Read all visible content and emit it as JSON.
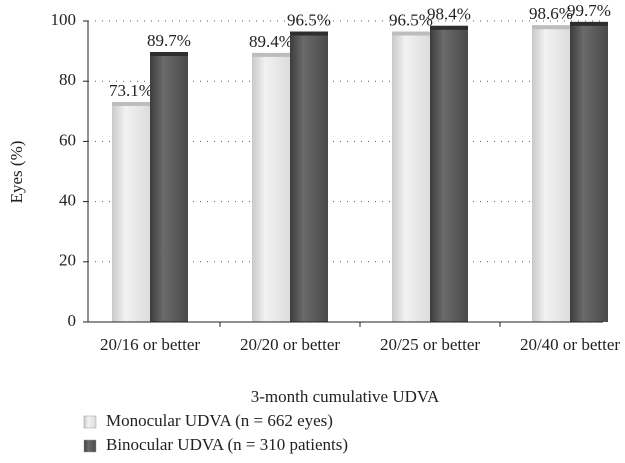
{
  "chart_data": {
    "type": "bar",
    "y_label": "Eyes (%)",
    "x_label": "3-month cumulative UDVA",
    "categories": [
      "20/16 or better",
      "20/20 or better",
      "20/25 or better",
      "20/40 or better"
    ],
    "series": [
      {
        "name": "Monocular UDVA (n = 662 eyes)",
        "color": "#e6e6e6",
        "values": [
          73.1,
          89.4,
          96.5,
          98.6
        ],
        "value_labels": [
          "73.1%",
          "89.4%",
          "96.5%",
          "98.6%"
        ]
      },
      {
        "name": "Binocular UDVA (n = 310 patients)",
        "color": "#555555",
        "values": [
          89.7,
          96.5,
          98.4,
          99.7
        ],
        "value_labels": [
          "89.7%",
          "96.5%",
          "98.4%",
          "99.7%"
        ]
      }
    ],
    "ylim": [
      0,
      100
    ],
    "yticks": [
      0,
      20,
      40,
      60,
      80,
      100
    ],
    "grid": true
  }
}
